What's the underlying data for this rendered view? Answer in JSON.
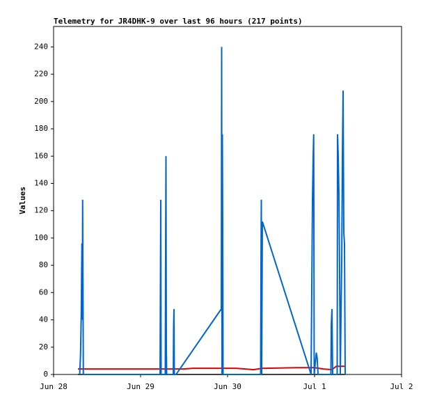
{
  "chart_data": {
    "type": "line",
    "title": "Telemetry for JR4DHK-9 over last 96 hours (217 points)",
    "y_label": "Values",
    "xlim": [
      0,
      4
    ],
    "xticks": [
      {
        "value": 0,
        "label": "Jun 28"
      },
      {
        "value": 1,
        "label": "Jun 29"
      },
      {
        "value": 2,
        "label": "Jun 30"
      },
      {
        "value": 3,
        "label": "Jul 1"
      },
      {
        "value": 4,
        "label": "Jul 2"
      }
    ],
    "ylim": [
      0,
      255
    ],
    "yticks": [
      0,
      20,
      40,
      60,
      80,
      100,
      120,
      140,
      160,
      180,
      200,
      220,
      240
    ],
    "grid": false,
    "series": [
      {
        "name": "black",
        "color": "#000000",
        "x": [
          0.28,
          3.35
        ],
        "values": [
          0,
          0
        ]
      },
      {
        "name": "red",
        "color": "#e00000",
        "x": [
          0.28,
          0.6,
          1.0,
          1.5,
          1.6,
          2.0,
          2.1,
          2.3,
          2.4,
          2.8,
          3.0,
          3.1,
          3.2,
          3.25,
          3.35
        ],
        "values": [
          4,
          4,
          4,
          4,
          4.5,
          4.5,
          4.5,
          3.5,
          4.5,
          5,
          5,
          4,
          3.5,
          6,
          6
        ]
      },
      {
        "name": "blue",
        "color": "#0066cc",
        "x": [
          0.3,
          0.31,
          0.318,
          0.322,
          0.326,
          0.33,
          0.334,
          0.338,
          0.342,
          1.224,
          1.228,
          1.232,
          1.236,
          1.284,
          1.288,
          1.292,
          1.296,
          1.3,
          1.376,
          1.38,
          1.384,
          1.388,
          1.408,
          1.928,
          1.932,
          1.936,
          1.94,
          1.944,
          1.948,
          2.38,
          2.384,
          2.388,
          2.392,
          2.4,
          2.96,
          2.976,
          2.984,
          2.99,
          2.996,
          3.02,
          3.03,
          3.04,
          3.188,
          3.192,
          3.2,
          3.208,
          3.26,
          3.264,
          3.272,
          3.28,
          3.288,
          3.296,
          3.304,
          3.312,
          3.32,
          3.328,
          3.336,
          3.344,
          3.352
        ],
        "values": [
          0,
          15,
          44,
          72,
          96,
          40,
          128,
          64,
          0,
          0,
          64,
          128,
          0,
          0,
          96,
          160,
          20,
          0,
          0,
          36,
          48,
          0,
          0,
          48,
          240,
          0,
          176,
          112,
          0,
          0,
          80,
          128,
          0,
          112,
          0,
          128,
          160,
          176,
          0,
          16,
          12,
          0,
          0,
          36,
          48,
          0,
          0,
          176,
          160,
          132,
          74,
          0,
          44,
          80,
          160,
          208,
          104,
          96,
          0
        ]
      }
    ]
  }
}
